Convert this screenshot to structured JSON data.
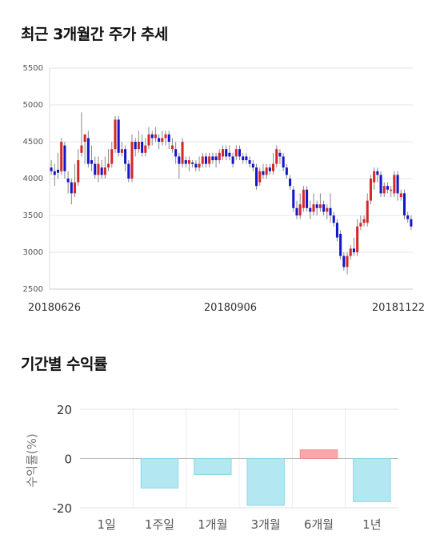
{
  "titles": {
    "candle": "최근 3개월간 주가 추세",
    "returns": "기간별 수익률"
  },
  "chart_data": [
    {
      "type": "candlestick",
      "title": "최근 3개월간 주가 추세",
      "ylim": [
        2500,
        5500
      ],
      "yticks": [
        "5500",
        "5000",
        "4500",
        "4000",
        "3500",
        "3000",
        "2500"
      ],
      "xticks": [
        "20180626",
        "20180906",
        "20181122"
      ],
      "grid": true,
      "colors": {
        "up": "#d62728",
        "down": "#1515cc",
        "wick": "#888888"
      },
      "candles": [
        [
          4150,
          4100,
          4250,
          4050
        ],
        [
          4100,
          4050,
          4200,
          3900
        ],
        [
          4120,
          4080,
          4350,
          4000
        ],
        [
          4100,
          4500,
          4550,
          4050
        ],
        [
          4450,
          4100,
          4500,
          4000
        ],
        [
          4000,
          3950,
          4100,
          3800
        ],
        [
          3950,
          3800,
          4000,
          3650
        ],
        [
          3800,
          3950,
          4200,
          3750
        ],
        [
          3950,
          4250,
          4400,
          3900
        ],
        [
          4350,
          4450,
          4900,
          4300
        ],
        [
          4500,
          4600,
          4600,
          4200
        ],
        [
          4550,
          4200,
          4650,
          4150
        ],
        [
          4250,
          4200,
          4450,
          4100
        ],
        [
          4200,
          4050,
          4300,
          4000
        ],
        [
          4050,
          4200,
          4300,
          3950
        ],
        [
          4150,
          4050,
          4250,
          4000
        ],
        [
          4050,
          4150,
          4300,
          4000
        ],
        [
          4150,
          4200,
          4400,
          4100
        ],
        [
          4200,
          4400,
          4500,
          4150
        ],
        [
          4400,
          4800,
          4850,
          4350
        ],
        [
          4800,
          4350,
          4850,
          4300
        ],
        [
          4350,
          4400,
          4500,
          4300
        ],
        [
          4400,
          4200,
          4450,
          4100
        ],
        [
          4200,
          4000,
          4250,
          3950
        ],
        [
          4000,
          4500,
          4600,
          3950
        ],
        [
          4500,
          4400,
          4550,
          4300
        ],
        [
          4400,
          4500,
          4650,
          4350
        ],
        [
          4500,
          4350,
          4600,
          4300
        ],
        [
          4350,
          4450,
          4550,
          4300
        ],
        [
          4450,
          4600,
          4700,
          4400
        ],
        [
          4600,
          4550,
          4650,
          4450
        ],
        [
          4550,
          4600,
          4700,
          4500
        ],
        [
          4550,
          4500,
          4600,
          4400
        ],
        [
          4500,
          4550,
          4650,
          4450
        ],
        [
          4550,
          4600,
          4650,
          4450
        ],
        [
          4600,
          4500,
          4650,
          4400
        ],
        [
          4400,
          4450,
          4550,
          4350
        ],
        [
          4400,
          4300,
          4500,
          4200
        ],
        [
          4300,
          4200,
          4350,
          4000
        ],
        [
          4200,
          4500,
          4550,
          4150
        ],
        [
          4250,
          4200,
          4300,
          4150
        ],
        [
          4200,
          4250,
          4300,
          4100
        ],
        [
          4220,
          4200,
          4250,
          4150
        ],
        [
          4200,
          4150,
          4250,
          4100
        ],
        [
          4150,
          4200,
          4300,
          4100
        ],
        [
          4200,
          4300,
          4350,
          4150
        ],
        [
          4300,
          4200,
          4350,
          4150
        ],
        [
          4200,
          4300,
          4350,
          4150
        ],
        [
          4300,
          4250,
          4350,
          4200
        ],
        [
          4300,
          4250,
          4350,
          4150
        ],
        [
          4250,
          4350,
          4400,
          4200
        ],
        [
          4300,
          4400,
          4450,
          4250
        ],
        [
          4400,
          4300,
          4450,
          4250
        ],
        [
          4350,
          4300,
          4450,
          4250
        ],
        [
          4300,
          4200,
          4350,
          4150
        ],
        [
          4300,
          4400,
          4450,
          4250
        ],
        [
          4400,
          4300,
          4450,
          4250
        ],
        [
          4300,
          4250,
          4350,
          4200
        ],
        [
          4300,
          4250,
          4350,
          4200
        ],
        [
          4250,
          4200,
          4300,
          4150
        ],
        [
          4200,
          4150,
          4250,
          4100
        ],
        [
          4150,
          3900,
          4200,
          3850
        ],
        [
          3950,
          4100,
          4150,
          3900
        ],
        [
          4100,
          4050,
          4200,
          4000
        ],
        [
          4050,
          4150,
          4200,
          4000
        ],
        [
          4150,
          4100,
          4200,
          4050
        ],
        [
          4100,
          4200,
          4350,
          4050
        ],
        [
          4200,
          4400,
          4450,
          4150
        ],
        [
          4350,
          4300,
          4400,
          4200
        ],
        [
          4300,
          4150,
          4350,
          4100
        ],
        [
          4150,
          4050,
          4200,
          4000
        ],
        [
          4000,
          3900,
          4050,
          3850
        ],
        [
          3850,
          3600,
          3900,
          3550
        ],
        [
          3600,
          3500,
          3700,
          3450
        ],
        [
          3500,
          3650,
          3800,
          3450
        ],
        [
          3600,
          3850,
          3900,
          3550
        ],
        [
          3850,
          3600,
          3900,
          3550
        ],
        [
          3600,
          3550,
          3700,
          3450
        ],
        [
          3550,
          3650,
          3800,
          3500
        ],
        [
          3650,
          3600,
          3700,
          3500
        ],
        [
          3600,
          3650,
          3800,
          3550
        ],
        [
          3650,
          3550,
          3700,
          3500
        ],
        [
          3550,
          3600,
          3650,
          3450
        ],
        [
          3600,
          3500,
          3800,
          3400
        ],
        [
          3500,
          3400,
          3550,
          3350
        ],
        [
          3400,
          3200,
          3450,
          3150
        ],
        [
          3250,
          2950,
          3300,
          2900
        ],
        [
          2950,
          2800,
          3000,
          2750
        ],
        [
          2800,
          2950,
          3000,
          2700
        ],
        [
          2950,
          3050,
          3100,
          2900
        ],
        [
          3050,
          3000,
          3200,
          2950
        ],
        [
          3000,
          3350,
          3450,
          2950
        ],
        [
          3350,
          3400,
          3500,
          3300
        ],
        [
          3400,
          3450,
          3500,
          3350
        ],
        [
          3400,
          3700,
          3800,
          3350
        ],
        [
          3700,
          4000,
          4050,
          3650
        ],
        [
          3950,
          4100,
          4150,
          3850
        ],
        [
          4100,
          4050,
          4150,
          3950
        ],
        [
          4050,
          3800,
          4100,
          3750
        ],
        [
          3800,
          3900,
          3950,
          3750
        ],
        [
          3900,
          3850,
          3950,
          3800
        ],
        [
          3850,
          3850,
          3900,
          3750
        ],
        [
          3800,
          4050,
          4100,
          3750
        ],
        [
          4050,
          3800,
          4100,
          3700
        ],
        [
          3750,
          3800,
          3850,
          3700
        ],
        [
          3800,
          3500,
          3850,
          3450
        ],
        [
          3500,
          3450,
          3550,
          3400
        ],
        [
          3450,
          3350,
          3500,
          3300
        ]
      ]
    },
    {
      "type": "bar",
      "title": "기간별 수익률",
      "ylabel": "수익률(%)",
      "ylim": [
        -20,
        20
      ],
      "yticks": [
        "20",
        "0",
        "-20"
      ],
      "categories": [
        "1일",
        "1주일",
        "1개월",
        "3개월",
        "6개월",
        "1년"
      ],
      "values": [
        0,
        -12,
        -6.5,
        -19,
        3.5,
        -17.5
      ],
      "colors": {
        "negative": "#b3e8f2",
        "positive": "#f8a8a8",
        "negative_edge": "#8fd6e6",
        "positive_edge": "#f28e8e"
      }
    }
  ]
}
